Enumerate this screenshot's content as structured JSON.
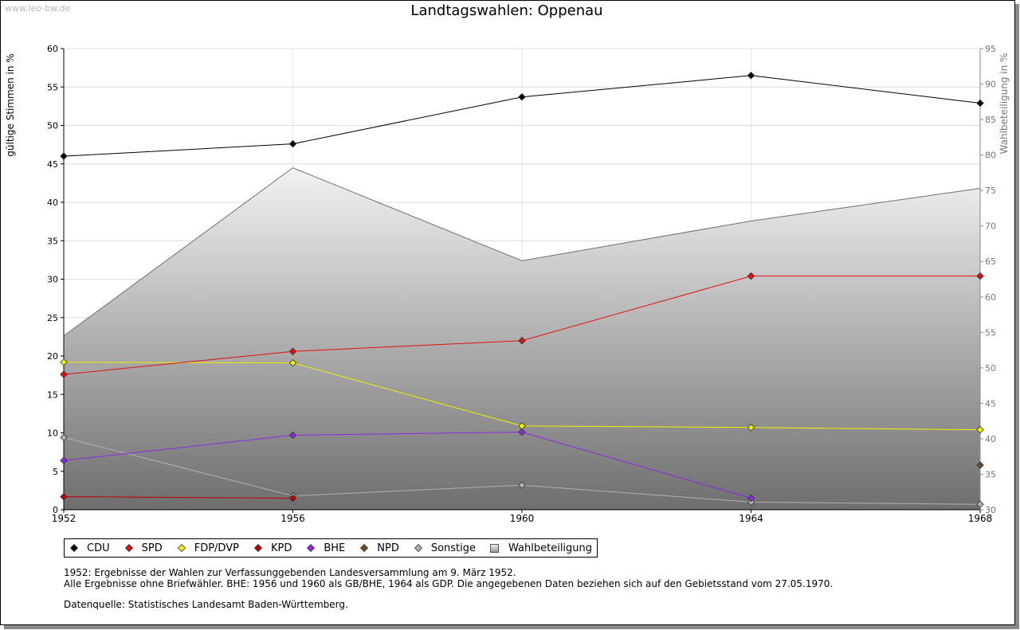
{
  "watermark": "www.leo-bw.de",
  "chart_data": {
    "type": "line",
    "title": "Landtagswahlen: Oppenau",
    "ylabel": "gültige Stimmen in %",
    "y2label": "Wahlbeteiligung in %",
    "x": [
      "1952",
      "1956",
      "1960",
      "1964",
      "1968"
    ],
    "ylim": [
      0,
      60
    ],
    "y2lim": [
      30,
      95
    ],
    "yticks": [
      0,
      5,
      10,
      15,
      20,
      25,
      30,
      35,
      40,
      45,
      50,
      55,
      60
    ],
    "y2ticks": [
      30,
      35,
      40,
      45,
      50,
      55,
      60,
      65,
      70,
      75,
      80,
      85,
      90,
      95
    ],
    "grid": true,
    "legend_position": "bottom",
    "series": [
      {
        "name": "CDU",
        "color": "#000000",
        "values": [
          46.0,
          47.6,
          53.7,
          56.5,
          52.9
        ]
      },
      {
        "name": "SPD",
        "color": "#e01010",
        "values": [
          17.6,
          20.6,
          22.0,
          30.4,
          30.4
        ]
      },
      {
        "name": "FDP/DVP",
        "color": "#f0f000",
        "values": [
          19.2,
          19.1,
          10.9,
          10.7,
          10.4
        ]
      },
      {
        "name": "KPD",
        "color": "#c00000",
        "values": [
          1.7,
          1.5,
          null,
          null,
          null
        ]
      },
      {
        "name": "BHE",
        "color": "#8a2be2",
        "values": [
          6.4,
          9.7,
          10.1,
          1.5,
          null
        ]
      },
      {
        "name": "NPD",
        "color": "#6b4a2e",
        "values": [
          null,
          null,
          null,
          null,
          5.8
        ]
      },
      {
        "name": "Sonstige",
        "color": "#b0b0b0",
        "values": [
          9.4,
          1.8,
          3.2,
          1.0,
          0.7
        ]
      }
    ],
    "turnout": {
      "name": "Wahlbeteiligung",
      "axis": "right",
      "values": [
        54.5,
        78.2,
        65.1,
        70.7,
        75.3
      ]
    }
  },
  "notes": [
    "1952: Ergebnisse der Wahlen zur Verfassunggebenden Landesversammlung am 9. März 1952.",
    "Alle Ergebnisse ohne Briefwähler. BHE: 1956 und 1960 als GB/BHE, 1964 als GDP. Die angegebenen Daten beziehen sich auf den Gebietsstand vom 27.05.1970."
  ],
  "source": "Datenquelle: Statistisches Landesamt Baden-Württemberg."
}
